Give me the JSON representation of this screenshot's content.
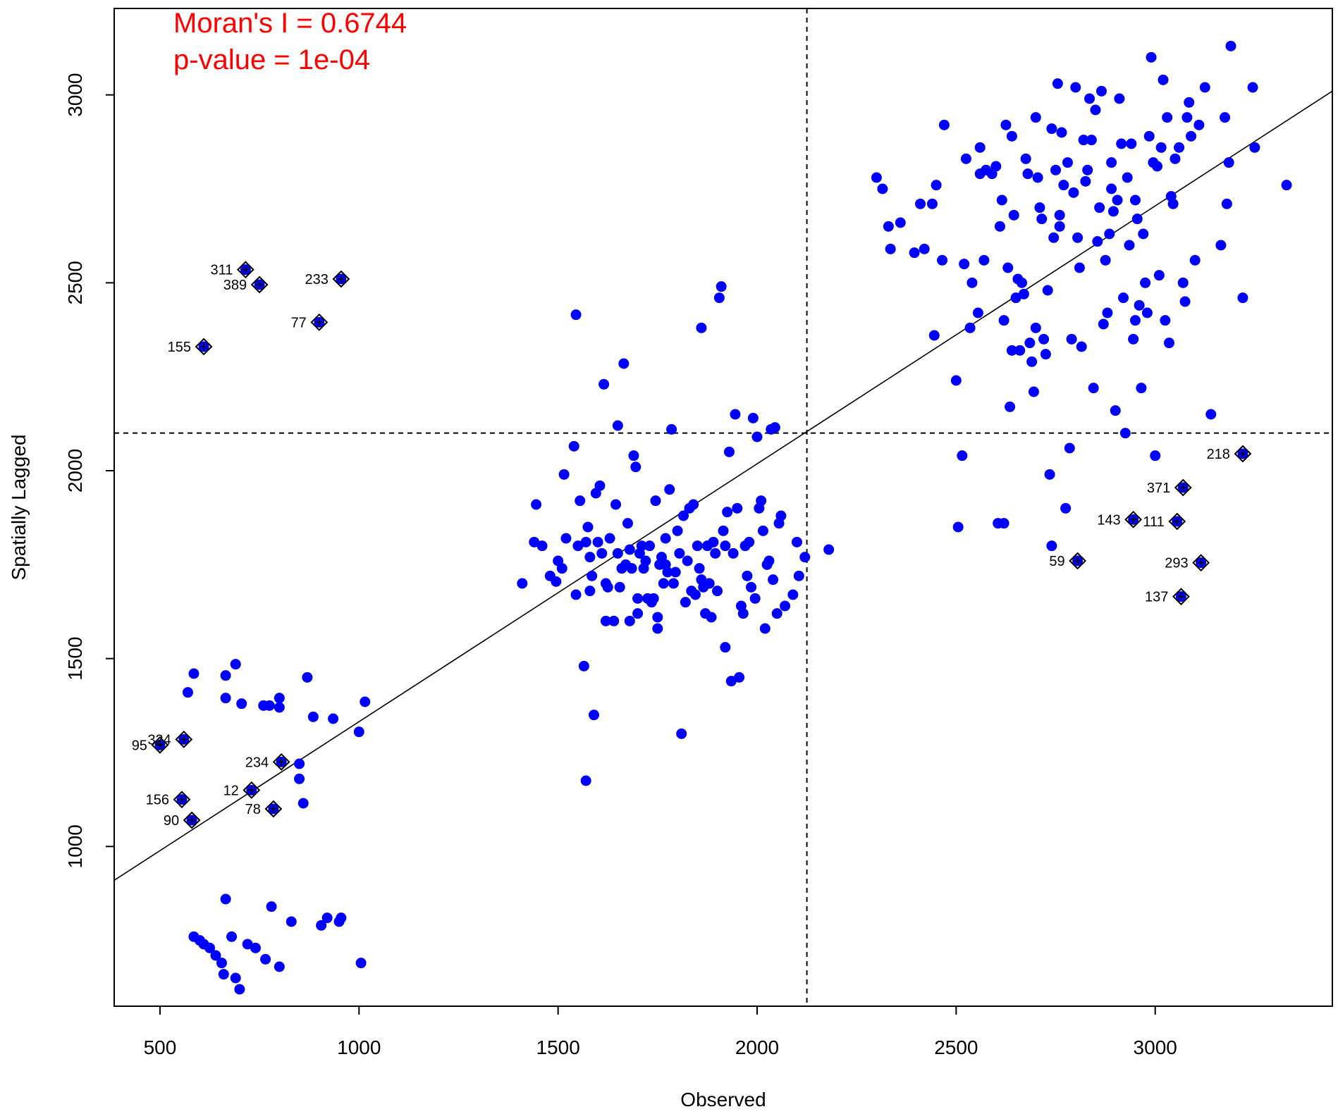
{
  "chart_data": {
    "type": "scatter",
    "xlabel": "Observed",
    "ylabel": "Spatially Lagged",
    "xlim": [
      385,
      3445
    ],
    "ylim": [
      575,
      3230
    ],
    "xticks": [
      500,
      1000,
      1500,
      2000,
      2500,
      3000
    ],
    "yticks": [
      1000,
      1500,
      2000,
      2500,
      3000
    ],
    "grid": false,
    "annotations": [
      "Moran's I = 0.6744",
      "p-value = 1e-04"
    ],
    "mean_lines": {
      "x": 2125,
      "y": 2100
    },
    "regression_line": {
      "x1": 385,
      "y1": 910,
      "x2": 3445,
      "y2": 3010
    },
    "colors": {
      "points": "#0000ff",
      "annotation": "#ff0000",
      "line": "#000000"
    },
    "points": [
      [
        585,
        760
      ],
      [
        600,
        750
      ],
      [
        610,
        740
      ],
      [
        625,
        730
      ],
      [
        640,
        710
      ],
      [
        655,
        690
      ],
      [
        660,
        660
      ],
      [
        690,
        650
      ],
      [
        700,
        620
      ],
      [
        720,
        740
      ],
      [
        740,
        730
      ],
      [
        765,
        700
      ],
      [
        780,
        840
      ],
      [
        800,
        680
      ],
      [
        830,
        800
      ],
      [
        905,
        790
      ],
      [
        920,
        810
      ],
      [
        950,
        800
      ],
      [
        955,
        810
      ],
      [
        1005,
        690
      ],
      [
        665,
        860
      ],
      [
        680,
        760
      ],
      [
        570,
        1410
      ],
      [
        585,
        1460
      ],
      [
        665,
        1455
      ],
      [
        690,
        1485
      ],
      [
        665,
        1395
      ],
      [
        705,
        1380
      ],
      [
        760,
        1375
      ],
      [
        775,
        1375
      ],
      [
        800,
        1395
      ],
      [
        800,
        1370
      ],
      [
        870,
        1450
      ],
      [
        885,
        1345
      ],
      [
        935,
        1340
      ],
      [
        1000,
        1305
      ],
      [
        1015,
        1385
      ],
      [
        850,
        1220
      ],
      [
        850,
        1180
      ],
      [
        860,
        1115
      ],
      [
        1410,
        1700
      ],
      [
        1440,
        1810
      ],
      [
        1445,
        1910
      ],
      [
        1460,
        1800
      ],
      [
        1480,
        1720
      ],
      [
        1495,
        1705
      ],
      [
        1500,
        1760
      ],
      [
        1510,
        1740
      ],
      [
        1515,
        1990
      ],
      [
        1520,
        1820
      ],
      [
        1540,
        2065
      ],
      [
        1545,
        2415
      ],
      [
        1545,
        1670
      ],
      [
        1550,
        1800
      ],
      [
        1555,
        1920
      ],
      [
        1565,
        1480
      ],
      [
        1570,
        1810
      ],
      [
        1570,
        1175
      ],
      [
        1575,
        1850
      ],
      [
        1580,
        1770
      ],
      [
        1585,
        1720
      ],
      [
        1590,
        1350
      ],
      [
        1595,
        1940
      ],
      [
        1600,
        1810
      ],
      [
        1605,
        1960
      ],
      [
        1610,
        1780
      ],
      [
        1615,
        2230
      ],
      [
        1620,
        1700
      ],
      [
        1625,
        1690
      ],
      [
        1630,
        1820
      ],
      [
        1640,
        1600
      ],
      [
        1645,
        1910
      ],
      [
        1650,
        1780
      ],
      [
        1655,
        1690
      ],
      [
        1660,
        1740
      ],
      [
        1665,
        2285
      ],
      [
        1670,
        1750
      ],
      [
        1675,
        1860
      ],
      [
        1680,
        1790
      ],
      [
        1685,
        1740
      ],
      [
        1690,
        2040
      ],
      [
        1695,
        2010
      ],
      [
        1700,
        1620
      ],
      [
        1705,
        1780
      ],
      [
        1710,
        1800
      ],
      [
        1715,
        1740
      ],
      [
        1720,
        1760
      ],
      [
        1725,
        1660
      ],
      [
        1730,
        1800
      ],
      [
        1735,
        1650
      ],
      [
        1740,
        1660
      ],
      [
        1745,
        1920
      ],
      [
        1750,
        1610
      ],
      [
        1755,
        1750
      ],
      [
        1760,
        1770
      ],
      [
        1765,
        1700
      ],
      [
        1770,
        1820
      ],
      [
        1775,
        1730
      ],
      [
        1780,
        1950
      ],
      [
        1785,
        2110
      ],
      [
        1790,
        1700
      ],
      [
        1795,
        1730
      ],
      [
        1800,
        1840
      ],
      [
        1805,
        1780
      ],
      [
        1810,
        1300
      ],
      [
        1815,
        1880
      ],
      [
        1820,
        1650
      ],
      [
        1825,
        1760
      ],
      [
        1830,
        1900
      ],
      [
        1835,
        1680
      ],
      [
        1840,
        1910
      ],
      [
        1845,
        1670
      ],
      [
        1850,
        1800
      ],
      [
        1855,
        1740
      ],
      [
        1860,
        1710
      ],
      [
        1865,
        1690
      ],
      [
        1870,
        1620
      ],
      [
        1875,
        1800
      ],
      [
        1880,
        1700
      ],
      [
        1885,
        1610
      ],
      [
        1890,
        1810
      ],
      [
        1895,
        1780
      ],
      [
        1900,
        1680
      ],
      [
        1905,
        2460
      ],
      [
        1910,
        2490
      ],
      [
        1915,
        1840
      ],
      [
        1920,
        1530
      ],
      [
        1925,
        1890
      ],
      [
        1930,
        2050
      ],
      [
        1935,
        1440
      ],
      [
        1940,
        1780
      ],
      [
        1945,
        2150
      ],
      [
        1950,
        1900
      ],
      [
        1955,
        1450
      ],
      [
        1960,
        1640
      ],
      [
        1965,
        1620
      ],
      [
        1970,
        1800
      ],
      [
        1975,
        1720
      ],
      [
        1980,
        1810
      ],
      [
        1985,
        1690
      ],
      [
        1990,
        2140
      ],
      [
        1995,
        1660
      ],
      [
        2000,
        2090
      ],
      [
        2005,
        1900
      ],
      [
        2010,
        1920
      ],
      [
        2015,
        1840
      ],
      [
        2020,
        1580
      ],
      [
        2025,
        1750
      ],
      [
        2030,
        1760
      ],
      [
        2035,
        2110
      ],
      [
        2040,
        1710
      ],
      [
        2045,
        2115
      ],
      [
        2050,
        1620
      ],
      [
        2055,
        1860
      ],
      [
        2060,
        1880
      ],
      [
        2070,
        1640
      ],
      [
        2090,
        1670
      ],
      [
        2100,
        1810
      ],
      [
        2105,
        1720
      ],
      [
        2120,
        1770
      ],
      [
        2180,
        1790
      ],
      [
        1620,
        1600
      ],
      [
        1700,
        1660
      ],
      [
        1770,
        1750
      ],
      [
        1650,
        2120
      ],
      [
        1860,
        2380
      ],
      [
        1920,
        1800
      ],
      [
        1580,
        1680
      ],
      [
        1680,
        1600
      ],
      [
        1750,
        1580
      ],
      [
        2300,
        2780
      ],
      [
        2315,
        2750
      ],
      [
        2330,
        2650
      ],
      [
        2335,
        2590
      ],
      [
        2360,
        2660
      ],
      [
        2395,
        2580
      ],
      [
        2410,
        2710
      ],
      [
        2420,
        2590
      ],
      [
        2440,
        2710
      ],
      [
        2445,
        2360
      ],
      [
        2450,
        2760
      ],
      [
        2465,
        2560
      ],
      [
        2470,
        2920
      ],
      [
        2500,
        2240
      ],
      [
        2505,
        1850
      ],
      [
        2515,
        2040
      ],
      [
        2520,
        2550
      ],
      [
        2525,
        2830
      ],
      [
        2535,
        2380
      ],
      [
        2540,
        2500
      ],
      [
        2555,
        2420
      ],
      [
        2560,
        2860
      ],
      [
        2570,
        2560
      ],
      [
        2575,
        2800
      ],
      [
        2590,
        2790
      ],
      [
        2600,
        2810
      ],
      [
        2610,
        2650
      ],
      [
        2615,
        2720
      ],
      [
        2620,
        2400
      ],
      [
        2625,
        2920
      ],
      [
        2630,
        2540
      ],
      [
        2635,
        2170
      ],
      [
        2640,
        2890
      ],
      [
        2645,
        2680
      ],
      [
        2650,
        2460
      ],
      [
        2655,
        2510
      ],
      [
        2660,
        2320
      ],
      [
        2665,
        2500
      ],
      [
        2670,
        2470
      ],
      [
        2675,
        2830
      ],
      [
        2680,
        2790
      ],
      [
        2685,
        2340
      ],
      [
        2690,
        2290
      ],
      [
        2695,
        2210
      ],
      [
        2700,
        2940
      ],
      [
        2705,
        2780
      ],
      [
        2710,
        2700
      ],
      [
        2715,
        2670
      ],
      [
        2720,
        2350
      ],
      [
        2725,
        2310
      ],
      [
        2730,
        2480
      ],
      [
        2735,
        1990
      ],
      [
        2740,
        2910
      ],
      [
        2745,
        2620
      ],
      [
        2750,
        2800
      ],
      [
        2755,
        3030
      ],
      [
        2760,
        2680
      ],
      [
        2765,
        2900
      ],
      [
        2770,
        2760
      ],
      [
        2775,
        1900
      ],
      [
        2780,
        2820
      ],
      [
        2785,
        2060
      ],
      [
        2790,
        2350
      ],
      [
        2795,
        2740
      ],
      [
        2800,
        3020
      ],
      [
        2805,
        2620
      ],
      [
        2810,
        2540
      ],
      [
        2815,
        2330
      ],
      [
        2820,
        2880
      ],
      [
        2825,
        2770
      ],
      [
        2830,
        2800
      ],
      [
        2835,
        2990
      ],
      [
        2840,
        2880
      ],
      [
        2845,
        2220
      ],
      [
        2850,
        2960
      ],
      [
        2855,
        2610
      ],
      [
        2860,
        2700
      ],
      [
        2865,
        3010
      ],
      [
        2870,
        2390
      ],
      [
        2875,
        2560
      ],
      [
        2880,
        2420
      ],
      [
        2885,
        2630
      ],
      [
        2890,
        2750
      ],
      [
        2895,
        2690
      ],
      [
        2900,
        2160
      ],
      [
        2905,
        2720
      ],
      [
        2910,
        2990
      ],
      [
        2915,
        2870
      ],
      [
        2920,
        2460
      ],
      [
        2925,
        2100
      ],
      [
        2930,
        2780
      ],
      [
        2935,
        2600
      ],
      [
        2940,
        2870
      ],
      [
        2945,
        2350
      ],
      [
        2950,
        2720
      ],
      [
        2955,
        2670
      ],
      [
        2960,
        2440
      ],
      [
        2965,
        2220
      ],
      [
        2970,
        2630
      ],
      [
        2975,
        2500
      ],
      [
        2980,
        2420
      ],
      [
        2985,
        2890
      ],
      [
        2990,
        3100
      ],
      [
        2995,
        2820
      ],
      [
        3000,
        2040
      ],
      [
        3005,
        2810
      ],
      [
        3010,
        2520
      ],
      [
        3015,
        2860
      ],
      [
        3020,
        3040
      ],
      [
        3025,
        2400
      ],
      [
        3030,
        2940
      ],
      [
        3035,
        2340
      ],
      [
        3040,
        2730
      ],
      [
        3045,
        2710
      ],
      [
        3050,
        2830
      ],
      [
        3060,
        2860
      ],
      [
        3070,
        2500
      ],
      [
        3075,
        2450
      ],
      [
        3080,
        2940
      ],
      [
        3085,
        2980
      ],
      [
        3090,
        2890
      ],
      [
        3100,
        2560
      ],
      [
        3110,
        2920
      ],
      [
        3125,
        3020
      ],
      [
        3140,
        2150
      ],
      [
        3165,
        2600
      ],
      [
        3175,
        2940
      ],
      [
        3185,
        2820
      ],
      [
        3190,
        3130
      ],
      [
        3220,
        2460
      ],
      [
        3245,
        3020
      ],
      [
        3250,
        2860
      ],
      [
        3330,
        2760
      ],
      [
        2605,
        1860
      ],
      [
        2620,
        1860
      ],
      [
        2740,
        1800
      ],
      [
        2950,
        2400
      ],
      [
        2560,
        2790
      ],
      [
        2700,
        2380
      ],
      [
        2890,
        2820
      ],
      [
        3180,
        2710
      ],
      [
        2760,
        2650
      ],
      [
        2640,
        2320
      ]
    ],
    "labeled_points": [
      {
        "id": "311",
        "x": 715,
        "y": 2535,
        "pos": "left"
      },
      {
        "id": "389",
        "x": 750,
        "y": 2495,
        "pos": "left"
      },
      {
        "id": "233",
        "x": 955,
        "y": 2510,
        "pos": "left"
      },
      {
        "id": "77",
        "x": 900,
        "y": 2395,
        "pos": "left"
      },
      {
        "id": "155",
        "x": 610,
        "y": 2330,
        "pos": "left"
      },
      {
        "id": "95",
        "x": 500,
        "y": 1270,
        "pos": "left"
      },
      {
        "id": "324",
        "x": 560,
        "y": 1285,
        "pos": "left"
      },
      {
        "id": "234",
        "x": 805,
        "y": 1225,
        "pos": "left"
      },
      {
        "id": "156",
        "x": 555,
        "y": 1125,
        "pos": "left"
      },
      {
        "id": "12",
        "x": 730,
        "y": 1150,
        "pos": "left"
      },
      {
        "id": "78",
        "x": 785,
        "y": 1100,
        "pos": "left"
      },
      {
        "id": "90",
        "x": 580,
        "y": 1070,
        "pos": "left"
      },
      {
        "id": "218",
        "x": 3220,
        "y": 2045,
        "pos": "left"
      },
      {
        "id": "371",
        "x": 3070,
        "y": 1955,
        "pos": "left"
      },
      {
        "id": "143",
        "x": 2945,
        "y": 1870,
        "pos": "left"
      },
      {
        "id": "111",
        "x": 3055,
        "y": 1865,
        "pos": "left"
      },
      {
        "id": "59",
        "x": 2805,
        "y": 1760,
        "pos": "left"
      },
      {
        "id": "293",
        "x": 3115,
        "y": 1755,
        "pos": "left"
      },
      {
        "id": "137",
        "x": 3065,
        "y": 1665,
        "pos": "left"
      }
    ]
  }
}
